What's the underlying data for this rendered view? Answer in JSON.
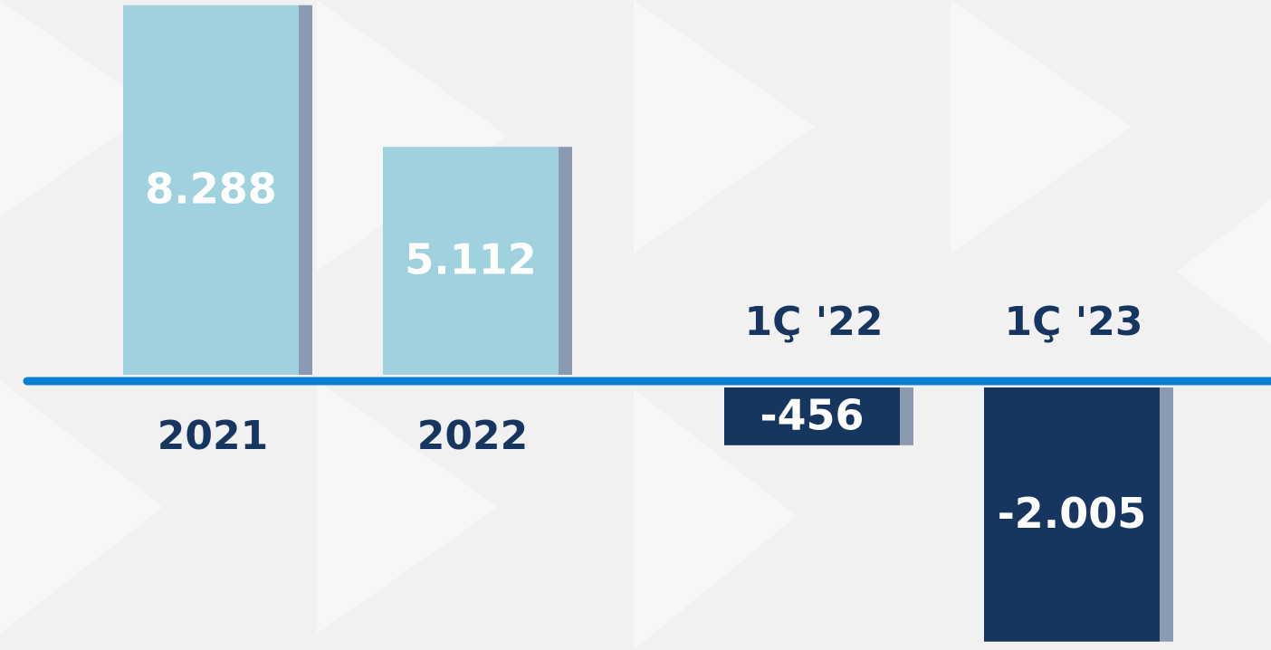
{
  "chart_data": {
    "type": "bar",
    "categories": [
      "2021",
      "2022",
      "1Ç '22",
      "1Ç '23"
    ],
    "values": [
      8288,
      5112,
      -456,
      -2005
    ],
    "value_labels": [
      "8.288",
      "5.112",
      "-456",
      "-2.005"
    ],
    "colors": [
      "#9fd1de",
      "#9fd1de",
      "#16365f",
      "#16365f"
    ]
  }
}
